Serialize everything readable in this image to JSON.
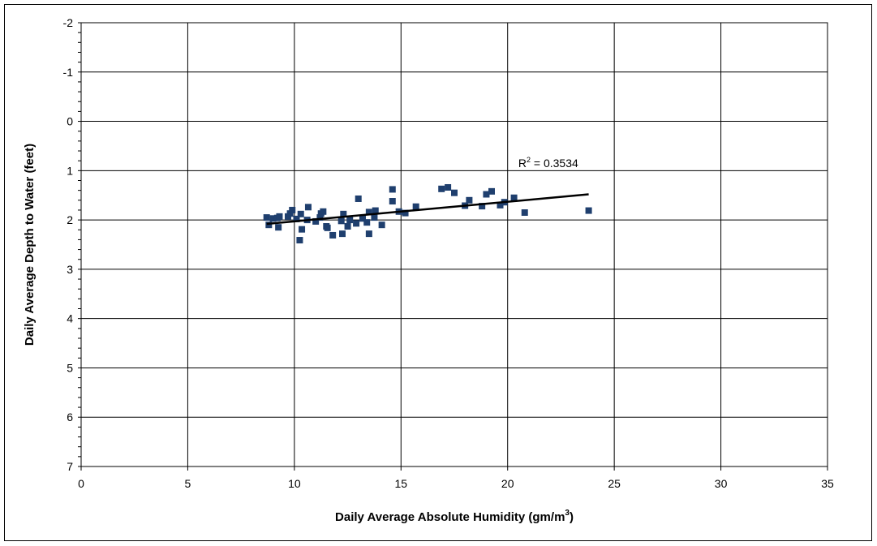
{
  "chart_data": {
    "type": "scatter",
    "xlabel_main": "Daily Average Absolute Humidity (gm/m",
    "xlabel_sup": "3",
    "xlabel_close": ")",
    "ylabel": "Daily Average Depth to Water (feet)",
    "xlim": [
      0,
      35
    ],
    "ylim": [
      -2,
      7
    ],
    "y_inverted": true,
    "grid": true,
    "x_ticks": [
      0,
      5,
      10,
      15,
      20,
      25,
      30,
      35
    ],
    "y_ticks": [
      -2,
      -1,
      0,
      1,
      2,
      3,
      4,
      5,
      6,
      7
    ],
    "marker_color": "#1F3F6E",
    "trendline": {
      "x": [
        8.7,
        23.8
      ],
      "y": [
        2.08,
        1.48
      ],
      "color": "#000000",
      "label_main": "R",
      "label_sup": "2",
      "label_rest": " = 0.3534"
    },
    "points": [
      {
        "x": 8.7,
        "y": 1.95
      },
      {
        "x": 8.8,
        "y": 2.1
      },
      {
        "x": 9.0,
        "y": 1.97
      },
      {
        "x": 9.2,
        "y": 1.96
      },
      {
        "x": 9.3,
        "y": 1.93
      },
      {
        "x": 9.25,
        "y": 2.15
      },
      {
        "x": 9.7,
        "y": 1.93
      },
      {
        "x": 9.8,
        "y": 1.87
      },
      {
        "x": 9.9,
        "y": 1.8
      },
      {
        "x": 10.1,
        "y": 1.98
      },
      {
        "x": 10.3,
        "y": 1.88
      },
      {
        "x": 10.35,
        "y": 2.19
      },
      {
        "x": 10.25,
        "y": 2.41
      },
      {
        "x": 10.6,
        "y": 2.0
      },
      {
        "x": 10.65,
        "y": 1.74
      },
      {
        "x": 11.0,
        "y": 2.03
      },
      {
        "x": 11.2,
        "y": 1.95
      },
      {
        "x": 11.25,
        "y": 1.87
      },
      {
        "x": 11.35,
        "y": 1.83
      },
      {
        "x": 11.5,
        "y": 2.13
      },
      {
        "x": 11.55,
        "y": 2.16
      },
      {
        "x": 11.8,
        "y": 2.31
      },
      {
        "x": 12.2,
        "y": 2.02
      },
      {
        "x": 12.3,
        "y": 1.88
      },
      {
        "x": 12.25,
        "y": 2.28
      },
      {
        "x": 12.5,
        "y": 2.13
      },
      {
        "x": 12.6,
        "y": 2.0
      },
      {
        "x": 12.9,
        "y": 2.07
      },
      {
        "x": 13.0,
        "y": 1.57
      },
      {
        "x": 13.2,
        "y": 1.97
      },
      {
        "x": 13.4,
        "y": 2.05
      },
      {
        "x": 13.5,
        "y": 1.84
      },
      {
        "x": 13.5,
        "y": 2.28
      },
      {
        "x": 13.75,
        "y": 1.95
      },
      {
        "x": 13.8,
        "y": 1.81
      },
      {
        "x": 14.1,
        "y": 2.1
      },
      {
        "x": 14.6,
        "y": 1.38
      },
      {
        "x": 14.6,
        "y": 1.62
      },
      {
        "x": 14.9,
        "y": 1.83
      },
      {
        "x": 15.2,
        "y": 1.86
      },
      {
        "x": 15.7,
        "y": 1.73
      },
      {
        "x": 16.9,
        "y": 1.37
      },
      {
        "x": 17.2,
        "y": 1.34
      },
      {
        "x": 17.5,
        "y": 1.45
      },
      {
        "x": 18.0,
        "y": 1.71
      },
      {
        "x": 18.2,
        "y": 1.6
      },
      {
        "x": 18.8,
        "y": 1.72
      },
      {
        "x": 19.0,
        "y": 1.48
      },
      {
        "x": 19.25,
        "y": 1.42
      },
      {
        "x": 19.65,
        "y": 1.7
      },
      {
        "x": 19.85,
        "y": 1.64
      },
      {
        "x": 20.3,
        "y": 1.55
      },
      {
        "x": 20.8,
        "y": 1.85
      },
      {
        "x": 23.8,
        "y": 1.81
      }
    ]
  }
}
